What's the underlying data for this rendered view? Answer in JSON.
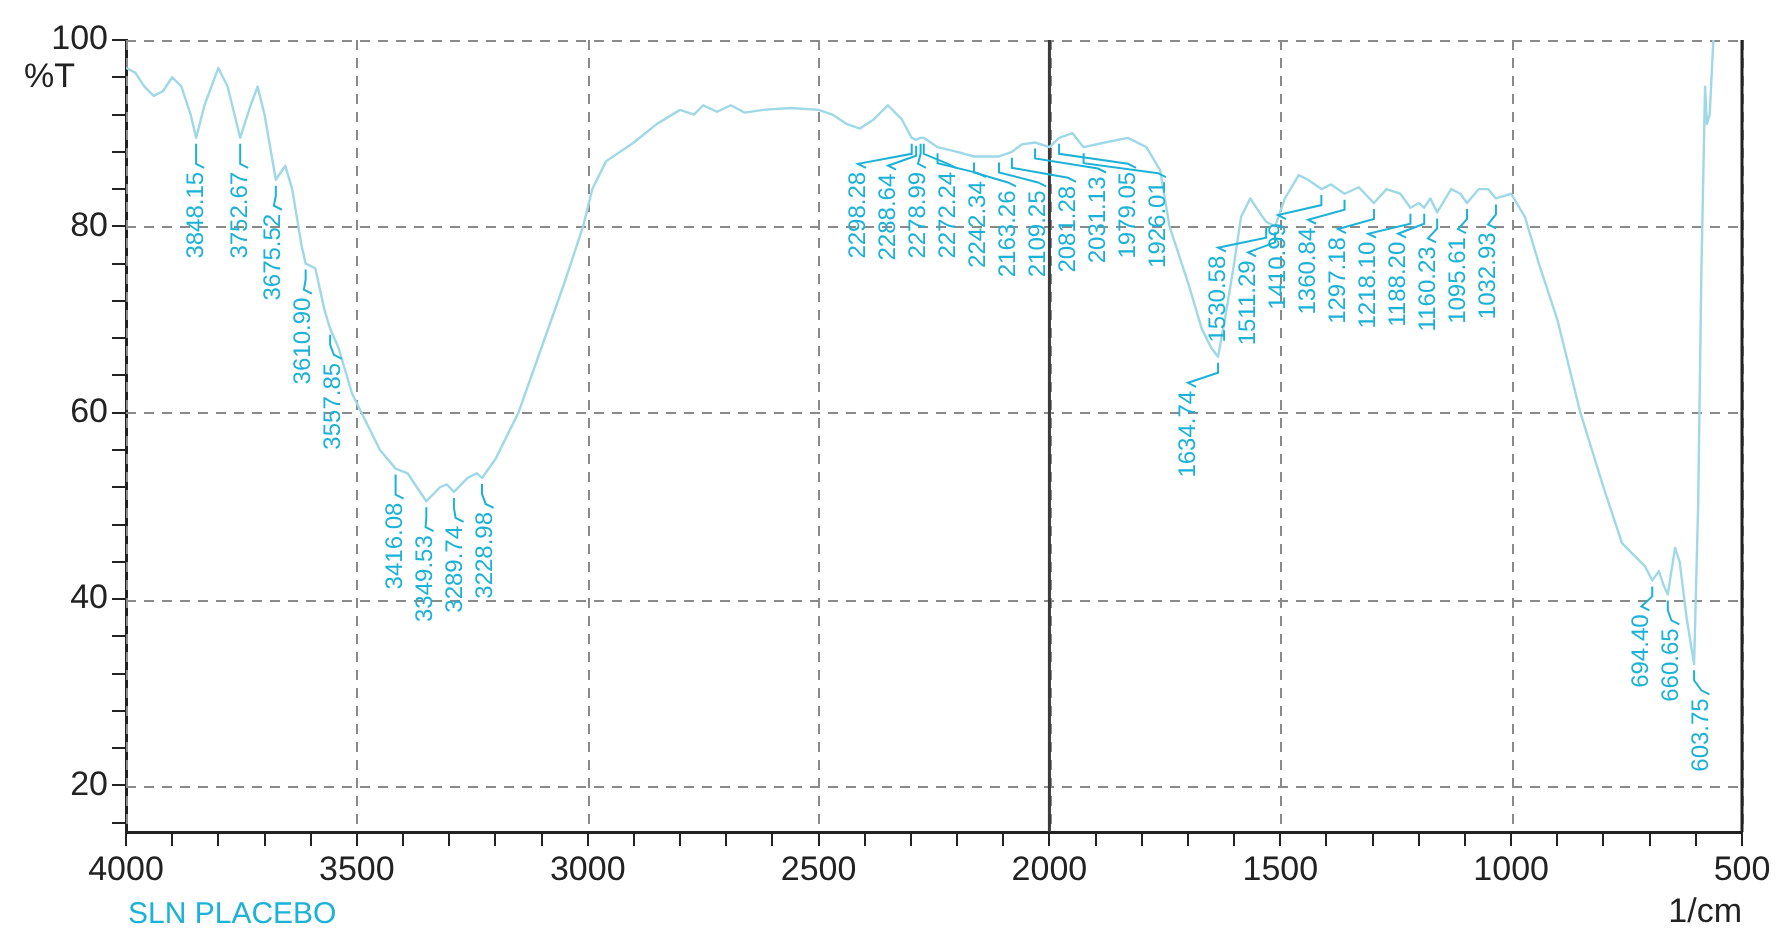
{
  "chart_data": {
    "type": "line",
    "ylabel": "%T",
    "xlabel": "1/cm",
    "xlim": [
      4000,
      500
    ],
    "ylim": [
      15,
      100
    ],
    "xticks": [
      4000,
      {
        "value": 3900,
        "label": null
      },
      {
        "value": 3800,
        "label": null
      },
      {
        "value": 3700,
        "label": null
      },
      {
        "value": 3600,
        "label": null
      },
      3500,
      {
        "value": 3400,
        "label": null
      },
      {
        "value": 3300,
        "label": null
      },
      {
        "value": 3200,
        "label": null
      },
      {
        "value": 3100,
        "label": null
      },
      3000,
      {
        "value": 2900,
        "label": null
      },
      {
        "value": 2800,
        "label": null
      },
      {
        "value": 2700,
        "label": null
      },
      {
        "value": 2600,
        "label": null
      },
      2500,
      {
        "value": 2400,
        "label": null
      },
      {
        "value": 2300,
        "label": null
      },
      {
        "value": 2200,
        "label": null
      },
      {
        "value": 2100,
        "label": null
      },
      2000,
      {
        "value": 1900,
        "label": null
      },
      {
        "value": 1800,
        "label": null
      },
      {
        "value": 1700,
        "label": null
      },
      {
        "value": 1600,
        "label": null
      },
      1500,
      {
        "value": 1400,
        "label": null
      },
      {
        "value": 1300,
        "label": null
      },
      {
        "value": 1200,
        "label": null
      },
      {
        "value": 1100,
        "label": null
      },
      1000,
      {
        "value": 900,
        "label": null
      },
      {
        "value": 800,
        "label": null
      },
      {
        "value": 700,
        "label": null
      },
      {
        "value": 600,
        "label": null
      },
      500
    ],
    "yticks": [
      {
        "value": 16,
        "label": null
      },
      20,
      {
        "value": 24,
        "label": null
      },
      {
        "value": 28,
        "label": null
      },
      {
        "value": 32,
        "label": null
      },
      {
        "value": 36,
        "label": null
      },
      40,
      {
        "value": 44,
        "label": null
      },
      {
        "value": 48,
        "label": null
      },
      {
        "value": 52,
        "label": null
      },
      {
        "value": 56,
        "label": null
      },
      60,
      {
        "value": 64,
        "label": null
      },
      {
        "value": 68,
        "label": null
      },
      {
        "value": 72,
        "label": null
      },
      {
        "value": 76,
        "label": null
      },
      80,
      {
        "value": 84,
        "label": null
      },
      {
        "value": 88,
        "label": null
      },
      {
        "value": 92,
        "label": null
      },
      {
        "value": 96,
        "label": null
      },
      100
    ],
    "grid": true,
    "ref_lines": [
      {
        "axis": "x",
        "value": 2000,
        "color": "#3a3a3a",
        "line_style": "solid"
      }
    ],
    "series": [
      {
        "color": "#9fd8e6",
        "x": [
          4000,
          3980,
          3960,
          3940,
          3920,
          3900,
          3880,
          3860,
          3848.15,
          3830,
          3800,
          3780,
          3752.67,
          3730,
          3715,
          3700,
          3675.52,
          3655,
          3640,
          3620,
          3610.9,
          3590,
          3570,
          3557.85,
          3540,
          3510,
          3480,
          3450,
          3416.08,
          3390,
          3370,
          3349.53,
          3320,
          3305,
          3289.74,
          3260,
          3240,
          3228.98,
          3200,
          3150,
          3100,
          3050,
          3010,
          2990,
          2960,
          2900,
          2850,
          2800,
          2770,
          2750,
          2720,
          2690,
          2660,
          2620,
          2560,
          2500,
          2470,
          2440,
          2410,
          2380,
          2350,
          2320,
          2298.28,
          2288.64,
          2278.99,
          2272.24,
          2242.34,
          2200,
          2163.26,
          2109.25,
          2081.28,
          2060,
          2031.13,
          2000,
          1979.05,
          1950,
          1926.01,
          1880,
          1830,
          1790,
          1760,
          1740,
          1700,
          1670,
          1650,
          1634.74,
          1620,
          1600,
          1585,
          1565,
          1545,
          1530.58,
          1511.29,
          1490,
          1460,
          1440,
          1410.99,
          1390,
          1360.84,
          1330,
          1297.18,
          1270,
          1240,
          1218.1,
          1200,
          1188.2,
          1175,
          1160.23,
          1130,
          1110,
          1095.61,
          1070,
          1050,
          1032.93,
          1000,
          970,
          940,
          900,
          850,
          800,
          760,
          730,
          710,
          694.4,
          680,
          670,
          660.65,
          645,
          635,
          620,
          603.75,
          595,
          588,
          580,
          576,
          570,
          562
        ],
        "values": [
          97,
          96.5,
          95,
          94,
          94.5,
          96,
          95,
          92,
          89.5,
          93,
          97,
          95,
          89.5,
          93,
          95,
          92,
          85,
          86.5,
          84,
          78,
          76,
          75.5,
          71,
          69,
          67,
          62,
          59,
          56,
          54,
          53.5,
          52,
          50.5,
          52,
          52.3,
          51.5,
          53,
          53.5,
          53,
          55,
          60,
          67,
          74,
          80,
          84,
          87,
          89,
          91,
          92.5,
          92,
          93,
          92.3,
          93,
          92.2,
          92.5,
          92.7,
          92.5,
          92,
          91,
          90.5,
          91.5,
          93,
          91.5,
          89.5,
          89.3,
          89.5,
          89.5,
          88.5,
          88,
          87.5,
          87.5,
          88,
          88.8,
          89,
          88.5,
          89.5,
          90,
          88.5,
          89,
          89.5,
          88.5,
          86,
          80,
          74,
          69,
          67,
          66,
          70,
          76,
          81,
          83,
          81.5,
          80.5,
          80,
          83,
          85.5,
          85,
          84,
          84.5,
          83.5,
          84.2,
          82.5,
          84,
          83.5,
          82,
          82.5,
          82,
          83,
          81.5,
          84,
          83.5,
          82.5,
          84,
          84,
          83,
          83.5,
          81,
          76,
          70,
          60,
          52,
          46,
          44.5,
          43.5,
          42,
          43,
          41.5,
          40.5,
          45.5,
          44,
          38,
          33,
          50,
          75,
          95,
          91,
          92,
          100
        ]
      }
    ],
    "annotations": [
      {
        "text": "3848.15",
        "x": 3848.15,
        "y": 89.5
      },
      {
        "text": "3752.67",
        "x": 3752.67,
        "y": 89.5
      },
      {
        "text": "3675.52",
        "x": 3675.52,
        "y": 85
      },
      {
        "text": "3610.90",
        "x": 3610.9,
        "y": 76
      },
      {
        "text": "3557.85",
        "x": 3557.85,
        "y": 69
      },
      {
        "text": "3416.08",
        "x": 3416.08,
        "y": 54
      },
      {
        "text": "3349.53",
        "x": 3349.53,
        "y": 50.5
      },
      {
        "text": "3289.74",
        "x": 3289.74,
        "y": 51.5
      },
      {
        "text": "3228.98",
        "x": 3228.98,
        "y": 53
      },
      {
        "text": "2298.28",
        "x": 2298.28,
        "y": 89.5
      },
      {
        "text": "2288.64",
        "x": 2288.64,
        "y": 89.3
      },
      {
        "text": "2278.99",
        "x": 2278.99,
        "y": 89.5
      },
      {
        "text": "2272.24",
        "x": 2272.24,
        "y": 89.5
      },
      {
        "text": "2242.34",
        "x": 2242.34,
        "y": 88.5
      },
      {
        "text": "2163.26",
        "x": 2163.26,
        "y": 87.5
      },
      {
        "text": "2109.25",
        "x": 2109.25,
        "y": 87.5
      },
      {
        "text": "2081.28",
        "x": 2081.28,
        "y": 88
      },
      {
        "text": "2031.13",
        "x": 2031.13,
        "y": 89
      },
      {
        "text": "1979.05",
        "x": 1979.05,
        "y": 89.5
      },
      {
        "text": "1926.01",
        "x": 1926.01,
        "y": 88.5
      },
      {
        "text": "1634.74",
        "x": 1634.74,
        "y": 66
      },
      {
        "text": "1530.58",
        "x": 1530.58,
        "y": 80.5
      },
      {
        "text": "1511.29",
        "x": 1511.29,
        "y": 80
      },
      {
        "text": "1410.99",
        "x": 1410.99,
        "y": 84
      },
      {
        "text": "1360.84",
        "x": 1360.84,
        "y": 83.5
      },
      {
        "text": "1297.18",
        "x": 1297.18,
        "y": 82.5
      },
      {
        "text": "1218.10",
        "x": 1218.1,
        "y": 82
      },
      {
        "text": "1188.20",
        "x": 1188.2,
        "y": 82
      },
      {
        "text": "1160.23",
        "x": 1160.23,
        "y": 81.5
      },
      {
        "text": "1095.61",
        "x": 1095.61,
        "y": 82.5
      },
      {
        "text": "1032.93",
        "x": 1032.93,
        "y": 83
      },
      {
        "text": "694.40",
        "x": 694.4,
        "y": 42
      },
      {
        "text": "660.65",
        "x": 660.65,
        "y": 40.5
      },
      {
        "text": "603.75",
        "x": 603.75,
        "y": 33
      },
      "SLN PLACEBO"
    ]
  }
}
